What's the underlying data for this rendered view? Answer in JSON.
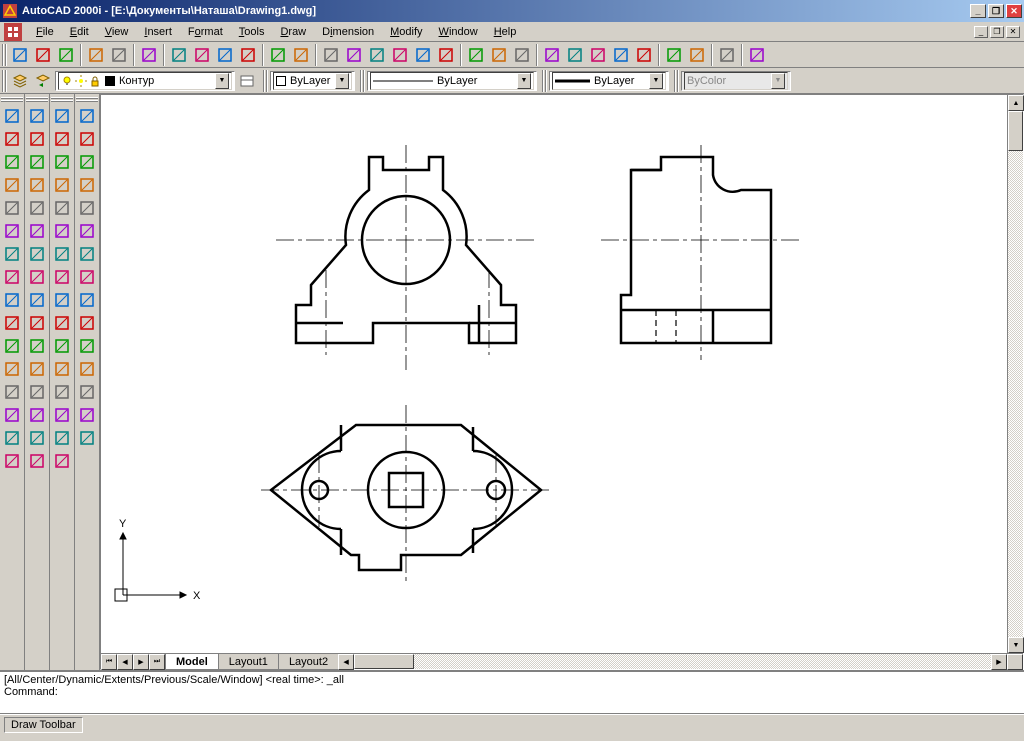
{
  "title": "AutoCAD 2000i - [E:\\Документы\\Наташа\\Drawing1.dwg]",
  "menus": [
    "File",
    "Edit",
    "View",
    "Insert",
    "Format",
    "Tools",
    "Draw",
    "Dimension",
    "Modify",
    "Window",
    "Help"
  ],
  "menu_underlines": [
    0,
    0,
    0,
    0,
    1,
    0,
    0,
    1,
    0,
    0,
    0
  ],
  "layer_dropdown": "Контур",
  "bylayer1": "ByLayer",
  "bylayer2": "ByLayer",
  "bylayer3": "ByLayer",
  "bycolor": "ByColor",
  "tabs": {
    "active": "Model",
    "others": [
      "Layout1",
      "Layout2"
    ]
  },
  "command_history": "[All/Center/Dynamic/Extents/Previous/Scale/Window] <real time>: _all",
  "command_prompt": "Command:",
  "status_text": "Draw Toolbar",
  "ucs_labels": {
    "x": "X",
    "y": "Y"
  },
  "toolbar_std": [
    "new",
    "open",
    "save",
    "print",
    "preview",
    "spell",
    "cut",
    "copy",
    "paste",
    "matchprop",
    "undo",
    "redo",
    "color1",
    "color2",
    "color3",
    "color4",
    "color5",
    "color6",
    "dist",
    "area",
    "massprop",
    "pan",
    "zoom",
    "zoom-win",
    "zoom-prev",
    "wheel",
    "props",
    "dbconnect",
    "help",
    "today"
  ],
  "toolbar_layer_icons": [
    "layers",
    "layer-prev"
  ],
  "layer_status_icons": [
    "bulb",
    "freeze",
    "lock",
    "color-swatch"
  ],
  "draw_col": [
    "line",
    "construction-line",
    "polyline",
    "polygon",
    "rectangle",
    "arc",
    "circle",
    "spline",
    "ellipse",
    "ellipse-arc",
    "block",
    "point",
    "hatch",
    "region",
    "text",
    "mtext"
  ],
  "draw_colb": [
    "xline",
    "ray",
    "mline",
    "3dpoly",
    "donut",
    "revcloud",
    "boundary",
    "wipeout",
    "table",
    "gradient",
    "arc2",
    "arc3",
    "arc4",
    "circ2",
    "circ3",
    "snap"
  ],
  "modify_col": [
    "erase",
    "copy",
    "mirror",
    "offset",
    "array",
    "move",
    "rotate",
    "scale",
    "stretch",
    "trim",
    "extend",
    "break",
    "chamfer",
    "fillet",
    "explode",
    "magnet"
  ],
  "osnap_col": [
    "endpoint",
    "midpoint",
    "intersection",
    "apparent",
    "extension",
    "center",
    "quadrant",
    "tangent",
    "perpendicular",
    "parallel",
    "node",
    "insert",
    "nearest",
    "none",
    "osnap-settings"
  ],
  "colors": {
    "titlebar_start": "#0a246a",
    "titlebar_end": "#a6caf0",
    "ui_face": "#d4d0c8",
    "ui_shadow": "#808080",
    "ui_dark": "#404040",
    "canvas_bg": "#ffffff",
    "drawing_stroke": "#000000",
    "centerline": "#000000"
  }
}
